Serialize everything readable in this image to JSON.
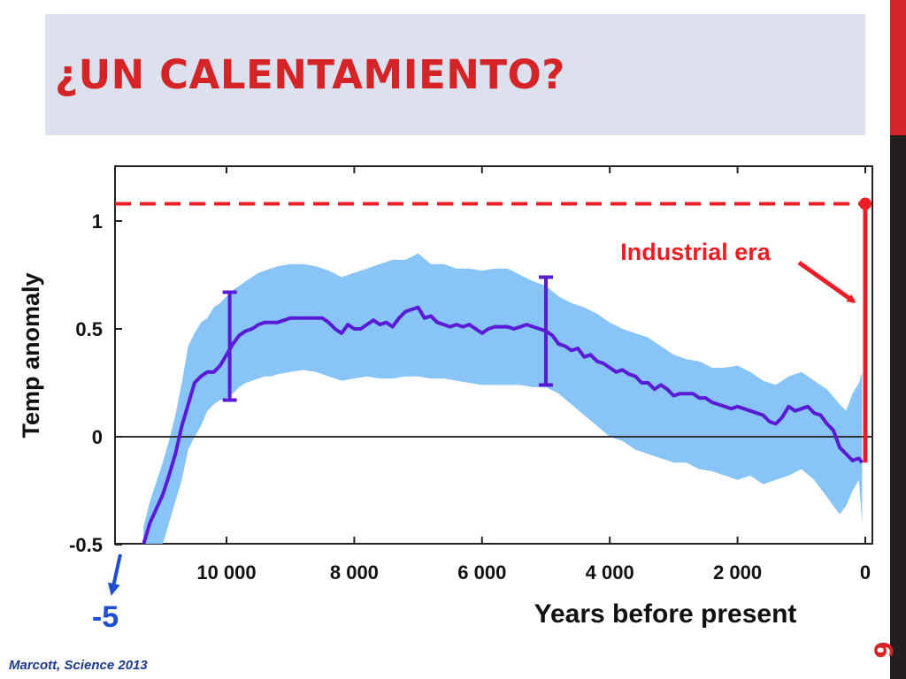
{
  "slide": {
    "title": "¿UN CALENTAMIENTO?",
    "slide_number": "6",
    "citation": "Marcott, Science 2013",
    "colors": {
      "title": "#d42428",
      "title_band": "#dde1ee",
      "side_bar_top": "#d42428",
      "side_bar_bottom": "#231f20",
      "citation": "#1d3a8a"
    }
  },
  "chart_data": {
    "type": "line",
    "title": "",
    "xlabel": "Years before present",
    "ylabel": "Temp anomaly",
    "x_reversed": true,
    "xlim": [
      11300,
      -50
    ],
    "ylim": [
      -0.5,
      1.0
    ],
    "x_ticks": [
      {
        "value": 10000,
        "label": "10 000"
      },
      {
        "value": 8000,
        "label": "8 000"
      },
      {
        "value": 6000,
        "label": "6 000"
      },
      {
        "value": 4000,
        "label": "4 000"
      },
      {
        "value": 2000,
        "label": "2 000"
      },
      {
        "value": 0,
        "label": "0"
      }
    ],
    "y_ticks": [
      {
        "value": 1,
        "label": "1"
      },
      {
        "value": 0.5,
        "label": "0.5"
      },
      {
        "value": 0,
        "label": "0"
      },
      {
        "value": -0.5,
        "label": "-0.5"
      }
    ],
    "zero_line": true,
    "grid": false,
    "series": [
      {
        "color": "#5a1bd6",
        "x": [
          11300,
          11200,
          11000,
          10900,
          10800,
          10700,
          10600,
          10500,
          10400,
          10300,
          10200,
          10100,
          10000,
          9900,
          9800,
          9700,
          9600,
          9500,
          9400,
          9300,
          9200,
          9100,
          9000,
          8900,
          8800,
          8700,
          8600,
          8500,
          8400,
          8300,
          8200,
          8100,
          8000,
          7900,
          7800,
          7700,
          7600,
          7500,
          7400,
          7300,
          7200,
          7100,
          7000,
          6900,
          6800,
          6700,
          6600,
          6500,
          6400,
          6300,
          6200,
          6100,
          6000,
          5900,
          5800,
          5700,
          5600,
          5500,
          5400,
          5300,
          5200,
          5100,
          5000,
          4900,
          4800,
          4700,
          4600,
          4500,
          4400,
          4300,
          4200,
          4100,
          4000,
          3900,
          3800,
          3700,
          3600,
          3500,
          3400,
          3300,
          3200,
          3100,
          3000,
          2900,
          2800,
          2700,
          2600,
          2500,
          2400,
          2300,
          2200,
          2100,
          2000,
          1900,
          1800,
          1700,
          1600,
          1500,
          1400,
          1300,
          1200,
          1100,
          1000,
          900,
          800,
          700,
          600,
          500,
          400,
          300,
          200,
          100,
          50
        ],
        "y": [
          -0.5,
          -0.4,
          -0.27,
          -0.18,
          -0.08,
          0.05,
          0.15,
          0.25,
          0.28,
          0.3,
          0.3,
          0.33,
          0.38,
          0.43,
          0.47,
          0.49,
          0.5,
          0.52,
          0.53,
          0.53,
          0.53,
          0.54,
          0.55,
          0.55,
          0.55,
          0.55,
          0.55,
          0.55,
          0.53,
          0.5,
          0.48,
          0.52,
          0.5,
          0.5,
          0.52,
          0.54,
          0.52,
          0.53,
          0.51,
          0.55,
          0.58,
          0.59,
          0.6,
          0.55,
          0.56,
          0.53,
          0.52,
          0.51,
          0.52,
          0.51,
          0.52,
          0.5,
          0.48,
          0.5,
          0.51,
          0.51,
          0.51,
          0.5,
          0.51,
          0.52,
          0.51,
          0.5,
          0.49,
          0.47,
          0.43,
          0.42,
          0.4,
          0.41,
          0.37,
          0.38,
          0.35,
          0.34,
          0.32,
          0.3,
          0.31,
          0.29,
          0.28,
          0.25,
          0.25,
          0.22,
          0.24,
          0.22,
          0.19,
          0.2,
          0.2,
          0.2,
          0.18,
          0.18,
          0.16,
          0.15,
          0.14,
          0.13,
          0.14,
          0.13,
          0.12,
          0.11,
          0.1,
          0.07,
          0.06,
          0.09,
          0.14,
          0.12,
          0.13,
          0.14,
          0.11,
          0.1,
          0.06,
          0.03,
          -0.05,
          -0.08,
          -0.11,
          -0.1,
          -0.12
        ]
      }
    ],
    "uncertainty_band": {
      "color": "#88c4f8",
      "x": [
        11300,
        11200,
        11000,
        10900,
        10800,
        10700,
        10600,
        10500,
        10400,
        10300,
        10200,
        10100,
        10000,
        9900,
        9800,
        9700,
        9600,
        9500,
        9400,
        9300,
        9200,
        9000,
        8800,
        8600,
        8400,
        8200,
        8000,
        7800,
        7600,
        7400,
        7200,
        7000,
        6800,
        6600,
        6400,
        6200,
        6000,
        5800,
        5600,
        5400,
        5200,
        5000,
        4800,
        4600,
        4400,
        4200,
        4000,
        3800,
        3600,
        3400,
        3200,
        3000,
        2800,
        2600,
        2400,
        2200,
        2000,
        1800,
        1600,
        1400,
        1200,
        1000,
        800,
        600,
        400,
        300,
        200,
        100,
        50
      ],
      "upper": [
        -0.42,
        -0.3,
        -0.12,
        -0.02,
        0.1,
        0.25,
        0.42,
        0.48,
        0.53,
        0.55,
        0.6,
        0.62,
        0.65,
        0.68,
        0.7,
        0.72,
        0.74,
        0.76,
        0.77,
        0.78,
        0.79,
        0.8,
        0.8,
        0.79,
        0.77,
        0.74,
        0.76,
        0.78,
        0.8,
        0.82,
        0.82,
        0.85,
        0.8,
        0.8,
        0.78,
        0.78,
        0.77,
        0.78,
        0.78,
        0.75,
        0.72,
        0.7,
        0.65,
        0.62,
        0.6,
        0.57,
        0.53,
        0.5,
        0.48,
        0.46,
        0.42,
        0.38,
        0.36,
        0.35,
        0.32,
        0.32,
        0.33,
        0.3,
        0.26,
        0.24,
        0.28,
        0.3,
        0.26,
        0.22,
        0.15,
        0.12,
        0.2,
        0.25,
        0.3
      ],
      "lower": [
        -0.6,
        -0.55,
        -0.5,
        -0.4,
        -0.3,
        -0.2,
        -0.06,
        0.0,
        0.05,
        0.12,
        0.15,
        0.17,
        0.18,
        0.2,
        0.23,
        0.25,
        0.26,
        0.27,
        0.28,
        0.28,
        0.29,
        0.3,
        0.31,
        0.3,
        0.28,
        0.26,
        0.27,
        0.28,
        0.27,
        0.27,
        0.28,
        0.28,
        0.27,
        0.27,
        0.26,
        0.25,
        0.24,
        0.24,
        0.24,
        0.24,
        0.23,
        0.23,
        0.2,
        0.15,
        0.1,
        0.05,
        0.0,
        -0.02,
        -0.06,
        -0.08,
        -0.1,
        -0.12,
        -0.12,
        -0.15,
        -0.16,
        -0.18,
        -0.2,
        -0.18,
        -0.22,
        -0.2,
        -0.18,
        -0.15,
        -0.2,
        -0.28,
        -0.36,
        -0.32,
        -0.25,
        -0.2,
        -0.4
      ]
    },
    "error_bars": [
      {
        "x": 9950,
        "low": 0.17,
        "high": 0.67,
        "color": "#5a1bd6"
      },
      {
        "x": 5000,
        "low": 0.24,
        "high": 0.74,
        "color": "#5a1bd6"
      }
    ],
    "industrial_spike": {
      "x": 0,
      "from": -0.12,
      "to": 1.08,
      "color": "#ee1c24"
    },
    "reference_line": {
      "y": 1.08,
      "style": "dashed",
      "color": "#ee1c24"
    },
    "annotations": [
      {
        "text": "Industrial era",
        "color": "#ee1c24"
      },
      {
        "text": "-5",
        "color": "#1f4fd0"
      }
    ]
  }
}
